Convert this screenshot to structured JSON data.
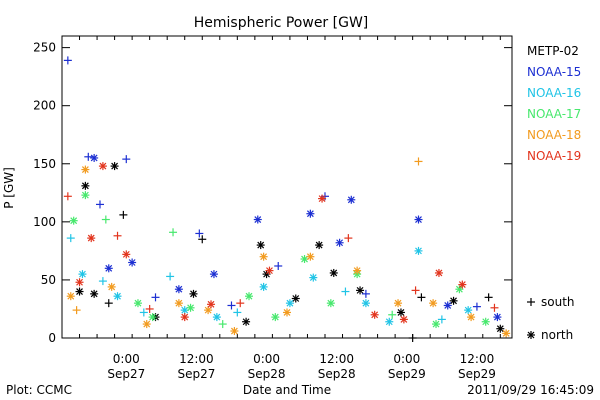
{
  "chart_data": {
    "type": "scatter",
    "title": "Hemispheric Power [GW]",
    "xlabel": "Date and Time",
    "ylabel": "P [GW]",
    "ylim": [
      0,
      260
    ],
    "xlim": [
      "2011-09-26 13:00",
      "2011-09-29 18:00"
    ],
    "yticks": [
      0,
      50,
      100,
      150,
      200,
      250
    ],
    "xticks": [
      {
        "t": "2011-09-27 00:00",
        "line1": "0:00",
        "line2": "Sep27"
      },
      {
        "t": "2011-09-27 12:00",
        "line1": "12:00",
        "line2": "Sep27"
      },
      {
        "t": "2011-09-28 00:00",
        "line1": "0:00",
        "line2": "Sep28"
      },
      {
        "t": "2011-09-28 12:00",
        "line1": "12:00",
        "line2": "Sep28"
      },
      {
        "t": "2011-09-29 00:00",
        "line1": "0:00",
        "line2": "Sep29"
      },
      {
        "t": "2011-09-29 12:00",
        "line1": "12:00",
        "line2": "Sep29"
      }
    ],
    "grid": false,
    "legend_position": "right",
    "marker_legend": [
      {
        "marker": "+",
        "label": "south"
      },
      {
        "marker": "*",
        "label": "north"
      }
    ],
    "series": [
      {
        "name": "METP-02",
        "color": "#000000",
        "points": [
          {
            "x": "2011-09-26 16:00",
            "y": 40,
            "m": "*"
          },
          {
            "x": "2011-09-26 17:00",
            "y": 131,
            "m": "*"
          },
          {
            "x": "2011-09-26 18:30",
            "y": 38,
            "m": "*"
          },
          {
            "x": "2011-09-26 21:00",
            "y": 30,
            "m": "+"
          },
          {
            "x": "2011-09-26 22:00",
            "y": 148,
            "m": "*"
          },
          {
            "x": "2011-09-26 23:30",
            "y": 106,
            "m": "+"
          },
          {
            "x": "2011-09-27 05:00",
            "y": 18,
            "m": "*"
          },
          {
            "x": "2011-09-27 11:30",
            "y": 38,
            "m": "*"
          },
          {
            "x": "2011-09-27 13:00",
            "y": 85,
            "m": "+"
          },
          {
            "x": "2011-09-27 20:30",
            "y": 14,
            "m": "*"
          },
          {
            "x": "2011-09-27 23:00",
            "y": 80,
            "m": "*"
          },
          {
            "x": "2011-09-28 00:00",
            "y": 55,
            "m": "*"
          },
          {
            "x": "2011-09-28 05:00",
            "y": 34,
            "m": "*"
          },
          {
            "x": "2011-09-28 09:00",
            "y": 80,
            "m": "*"
          },
          {
            "x": "2011-09-28 11:30",
            "y": 56,
            "m": "*"
          },
          {
            "x": "2011-09-28 16:00",
            "y": 41,
            "m": "*"
          },
          {
            "x": "2011-09-28 23:00",
            "y": 22,
            "m": "*"
          },
          {
            "x": "2011-09-29 01:00",
            "y": 0,
            "m": "+"
          },
          {
            "x": "2011-09-29 02:30",
            "y": 35,
            "m": "+"
          },
          {
            "x": "2011-09-29 08:00",
            "y": 32,
            "m": "*"
          },
          {
            "x": "2011-09-29 14:00",
            "y": 35,
            "m": "+"
          },
          {
            "x": "2011-09-29 16:00",
            "y": 8,
            "m": "*"
          }
        ]
      },
      {
        "name": "NOAA-15",
        "color": "#1c2fd2",
        "points": [
          {
            "x": "2011-09-26 14:00",
            "y": 239,
            "m": "+"
          },
          {
            "x": "2011-09-26 17:30",
            "y": 156,
            "m": "+"
          },
          {
            "x": "2011-09-26 18:30",
            "y": 155,
            "m": "*"
          },
          {
            "x": "2011-09-26 19:30",
            "y": 115,
            "m": "+"
          },
          {
            "x": "2011-09-26 21:00",
            "y": 60,
            "m": "*"
          },
          {
            "x": "2011-09-27 00:00",
            "y": 154,
            "m": "+"
          },
          {
            "x": "2011-09-27 01:00",
            "y": 65,
            "m": "*"
          },
          {
            "x": "2011-09-27 05:00",
            "y": 35,
            "m": "+"
          },
          {
            "x": "2011-09-27 09:00",
            "y": 42,
            "m": "*"
          },
          {
            "x": "2011-09-27 12:30",
            "y": 90,
            "m": "+"
          },
          {
            "x": "2011-09-27 15:00",
            "y": 55,
            "m": "*"
          },
          {
            "x": "2011-09-27 18:00",
            "y": 28,
            "m": "+"
          },
          {
            "x": "2011-09-27 22:30",
            "y": 102,
            "m": "*"
          },
          {
            "x": "2011-09-28 02:00",
            "y": 62,
            "m": "+"
          },
          {
            "x": "2011-09-28 07:30",
            "y": 107,
            "m": "*"
          },
          {
            "x": "2011-09-28 10:00",
            "y": 122,
            "m": "+"
          },
          {
            "x": "2011-09-28 12:30",
            "y": 82,
            "m": "*"
          },
          {
            "x": "2011-09-28 14:30",
            "y": 119,
            "m": "*"
          },
          {
            "x": "2011-09-28 17:00",
            "y": 38,
            "m": "+"
          },
          {
            "x": "2011-09-29 02:00",
            "y": 102,
            "m": "*"
          },
          {
            "x": "2011-09-29 07:00",
            "y": 28,
            "m": "*"
          },
          {
            "x": "2011-09-29 12:00",
            "y": 27,
            "m": "+"
          },
          {
            "x": "2011-09-29 15:30",
            "y": 18,
            "m": "*"
          }
        ]
      },
      {
        "name": "NOAA-16",
        "color": "#20c4e6",
        "points": [
          {
            "x": "2011-09-26 14:30",
            "y": 86,
            "m": "+"
          },
          {
            "x": "2011-09-26 16:30",
            "y": 55,
            "m": "*"
          },
          {
            "x": "2011-09-26 20:00",
            "y": 49,
            "m": "+"
          },
          {
            "x": "2011-09-26 22:30",
            "y": 36,
            "m": "*"
          },
          {
            "x": "2011-09-27 03:00",
            "y": 22,
            "m": "+"
          },
          {
            "x": "2011-09-27 07:30",
            "y": 53,
            "m": "+"
          },
          {
            "x": "2011-09-27 10:00",
            "y": 24,
            "m": "*"
          },
          {
            "x": "2011-09-27 15:30",
            "y": 18,
            "m": "*"
          },
          {
            "x": "2011-09-27 19:00",
            "y": 22,
            "m": "+"
          },
          {
            "x": "2011-09-27 23:30",
            "y": 44,
            "m": "*"
          },
          {
            "x": "2011-09-28 04:00",
            "y": 30,
            "m": "*"
          },
          {
            "x": "2011-09-28 08:00",
            "y": 52,
            "m": "*"
          },
          {
            "x": "2011-09-28 13:30",
            "y": 40,
            "m": "+"
          },
          {
            "x": "2011-09-28 17:00",
            "y": 30,
            "m": "*"
          },
          {
            "x": "2011-09-28 21:00",
            "y": 14,
            "m": "*"
          },
          {
            "x": "2011-09-29 02:00",
            "y": 75,
            "m": "*"
          },
          {
            "x": "2011-09-29 06:00",
            "y": 16,
            "m": "+"
          },
          {
            "x": "2011-09-29 10:30",
            "y": 24,
            "m": "*"
          }
        ]
      },
      {
        "name": "NOAA-17",
        "color": "#47e86d",
        "points": [
          {
            "x": "2011-09-26 15:00",
            "y": 101,
            "m": "*"
          },
          {
            "x": "2011-09-26 17:00",
            "y": 123,
            "m": "*"
          },
          {
            "x": "2011-09-26 20:30",
            "y": 102,
            "m": "+"
          },
          {
            "x": "2011-09-27 02:00",
            "y": 30,
            "m": "*"
          },
          {
            "x": "2011-09-27 04:30",
            "y": 18,
            "m": "*"
          },
          {
            "x": "2011-09-27 08:00",
            "y": 91,
            "m": "+"
          },
          {
            "x": "2011-09-27 11:00",
            "y": 26,
            "m": "*"
          },
          {
            "x": "2011-09-27 16:30",
            "y": 12,
            "m": "+"
          },
          {
            "x": "2011-09-27 21:00",
            "y": 36,
            "m": "*"
          },
          {
            "x": "2011-09-28 01:30",
            "y": 18,
            "m": "*"
          },
          {
            "x": "2011-09-28 06:30",
            "y": 68,
            "m": "*"
          },
          {
            "x": "2011-09-28 11:00",
            "y": 30,
            "m": "*"
          },
          {
            "x": "2011-09-28 15:30",
            "y": 55,
            "m": "*"
          },
          {
            "x": "2011-09-28 21:30",
            "y": 20,
            "m": "+"
          },
          {
            "x": "2011-09-29 05:00",
            "y": 12,
            "m": "*"
          },
          {
            "x": "2011-09-29 09:00",
            "y": 42,
            "m": "*"
          },
          {
            "x": "2011-09-29 13:30",
            "y": 14,
            "m": "*"
          }
        ]
      },
      {
        "name": "NOAA-18",
        "color": "#f29b1f",
        "points": [
          {
            "x": "2011-09-26 14:30",
            "y": 36,
            "m": "*"
          },
          {
            "x": "2011-09-26 15:30",
            "y": 24,
            "m": "+"
          },
          {
            "x": "2011-09-26 17:00",
            "y": 145,
            "m": "*"
          },
          {
            "x": "2011-09-26 21:30",
            "y": 44,
            "m": "*"
          },
          {
            "x": "2011-09-27 03:30",
            "y": 12,
            "m": "*"
          },
          {
            "x": "2011-09-27 09:00",
            "y": 30,
            "m": "*"
          },
          {
            "x": "2011-09-27 14:00",
            "y": 24,
            "m": "*"
          },
          {
            "x": "2011-09-27 18:30",
            "y": 6,
            "m": "*"
          },
          {
            "x": "2011-09-27 23:30",
            "y": 70,
            "m": "*"
          },
          {
            "x": "2011-09-28 03:30",
            "y": 22,
            "m": "*"
          },
          {
            "x": "2011-09-28 07:30",
            "y": 70,
            "m": "*"
          },
          {
            "x": "2011-09-28 15:30",
            "y": 58,
            "m": "*"
          },
          {
            "x": "2011-09-28 22:30",
            "y": 30,
            "m": "*"
          },
          {
            "x": "2011-09-29 02:00",
            "y": 152,
            "m": "+"
          },
          {
            "x": "2011-09-29 04:30",
            "y": 30,
            "m": "*"
          },
          {
            "x": "2011-09-29 11:00",
            "y": 18,
            "m": "*"
          },
          {
            "x": "2011-09-29 17:00",
            "y": 4,
            "m": "*"
          }
        ]
      },
      {
        "name": "NOAA-19",
        "color": "#e2341d",
        "points": [
          {
            "x": "2011-09-26 14:00",
            "y": 122,
            "m": "+"
          },
          {
            "x": "2011-09-26 16:00",
            "y": 48,
            "m": "*"
          },
          {
            "x": "2011-09-26 18:00",
            "y": 86,
            "m": "*"
          },
          {
            "x": "2011-09-26 20:00",
            "y": 148,
            "m": "*"
          },
          {
            "x": "2011-09-26 22:30",
            "y": 88,
            "m": "+"
          },
          {
            "x": "2011-09-27 00:00",
            "y": 72,
            "m": "*"
          },
          {
            "x": "2011-09-27 04:00",
            "y": 25,
            "m": "+"
          },
          {
            "x": "2011-09-27 10:00",
            "y": 18,
            "m": "*"
          },
          {
            "x": "2011-09-27 14:30",
            "y": 29,
            "m": "*"
          },
          {
            "x": "2011-09-27 19:30",
            "y": 30,
            "m": "+"
          },
          {
            "x": "2011-09-28 00:30",
            "y": 58,
            "m": "*"
          },
          {
            "x": "2011-09-28 09:30",
            "y": 120,
            "m": "*"
          },
          {
            "x": "2011-09-28 14:00",
            "y": 86,
            "m": "+"
          },
          {
            "x": "2011-09-28 18:30",
            "y": 20,
            "m": "*"
          },
          {
            "x": "2011-09-28 23:30",
            "y": 16,
            "m": "*"
          },
          {
            "x": "2011-09-29 01:30",
            "y": 41,
            "m": "+"
          },
          {
            "x": "2011-09-29 05:30",
            "y": 56,
            "m": "*"
          },
          {
            "x": "2011-09-29 09:30",
            "y": 46,
            "m": "*"
          },
          {
            "x": "2011-09-29 15:00",
            "y": 26,
            "m": "+"
          }
        ]
      }
    ]
  },
  "footer": {
    "left": "Plot: CCMC",
    "center": "Date and Time",
    "right": "2011/09/29 16:45:09"
  }
}
